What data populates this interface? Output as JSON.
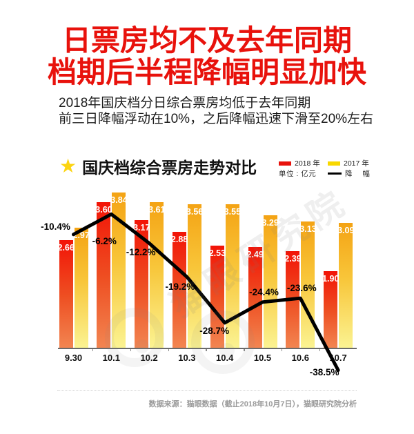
{
  "header": {
    "title_line1": "日票房均不及去年同期",
    "title_line2": "档期后半程降幅明显加快",
    "subtitle_line1": "2018年国庆档分日综合票房均低于去年同期",
    "subtitle_line2": "前三日降幅浮动在10%，之后降幅迅速下滑至20%左右",
    "title_color": "#e8120c"
  },
  "chart_header": {
    "title": "国庆档综合票房走势对比",
    "star_icon_color": "#fcd411"
  },
  "legend": {
    "series_2018": {
      "label": "2018 年",
      "color": "#e8120c"
    },
    "series_2017": {
      "label": "2017 年",
      "color": "#f8d800"
    },
    "unit": "单位 : 亿元",
    "drop": {
      "label": "降 幅",
      "color": "#000000"
    }
  },
  "chart_data": {
    "type": "bar",
    "title": "国庆档综合票房走势对比",
    "unit": "亿元",
    "categories": [
      "9.30",
      "10.1",
      "10.2",
      "10.3",
      "10.4",
      "10.5",
      "10.6",
      "10.7"
    ],
    "series": [
      {
        "name": "2018 年",
        "type": "bar",
        "color_top": "#f21407",
        "color_bottom": "#f28551",
        "values": [
          2.66,
          3.6,
          3.17,
          2.88,
          2.53,
          2.49,
          2.39,
          1.9
        ]
      },
      {
        "name": "2017 年",
        "type": "bar",
        "color_top": "#f4a314",
        "color_bottom": "#fbf392",
        "values": [
          2.97,
          3.84,
          3.61,
          3.56,
          3.55,
          3.29,
          3.13,
          3.09
        ]
      },
      {
        "name": "降幅",
        "type": "line",
        "color": "#000000",
        "values_pct": [
          -10.4,
          -6.2,
          -12.2,
          -19.2,
          -28.7,
          -24.4,
          -23.6,
          -38.5
        ],
        "labels": [
          "-10.4%",
          "-6.2%",
          "-12.2%",
          "-19.2%",
          "-28.7%",
          "-24.4%",
          "-23.6%",
          "-38.5%"
        ]
      }
    ],
    "value_axis_range": [
      0,
      4
    ],
    "grid": false,
    "legend_position": "top-right"
  },
  "footer": {
    "source": "数据来源：猫眼数据（截止2018年10月7日），猫眼研究院分析"
  },
  "watermark": {
    "text": "猫眼研究院"
  }
}
